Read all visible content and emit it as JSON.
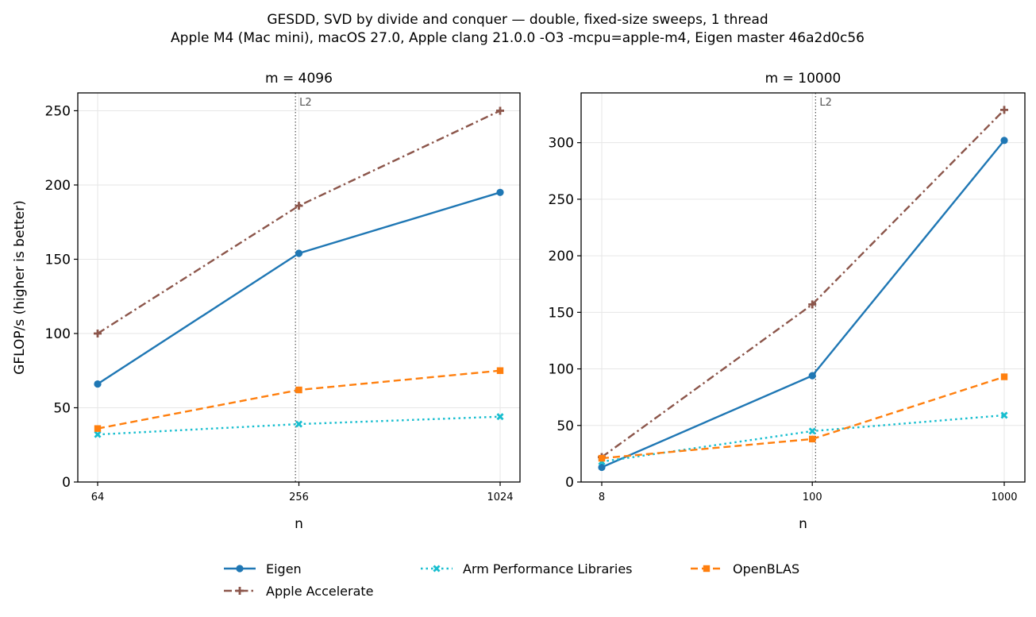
{
  "figure": {
    "title_line1": "GESDD, SVD by divide and conquer — double, fixed-size sweeps, 1 thread",
    "title_line2": "Apple M4 (Mac mini), macOS 27.0, Apple clang 21.0.0 -O3 -mcpu=apple-m4, Eigen master 46a2d0c56",
    "ylabel": "GFLOP/s (higher is better)",
    "legend": [
      "Eigen",
      "Apple Accelerate",
      "Arm Performance Libraries",
      "OpenBLAS"
    ]
  },
  "colors": {
    "Eigen": "#1f77b4",
    "Apple Accelerate": "#8c564b",
    "Arm Performance Libraries": "#17becf",
    "OpenBLAS": "#ff7f0e"
  },
  "chart_data": [
    {
      "type": "line",
      "title": "m = 4096",
      "xlabel": "n",
      "ylabel": "GFLOP/s (higher is better)",
      "xscale": "log",
      "x": [
        64,
        256,
        1024
      ],
      "x_tick_labels": [
        "64",
        "256",
        "1024"
      ],
      "ylim": [
        0,
        262
      ],
      "y_ticks": [
        0,
        50,
        100,
        150,
        200,
        250
      ],
      "grid": true,
      "vline": {
        "x": 250,
        "label": "L2"
      },
      "series": [
        {
          "name": "Eigen",
          "values": [
            66,
            154,
            195
          ],
          "marker": "circle",
          "dash": "solid"
        },
        {
          "name": "Apple Accelerate",
          "values": [
            100,
            186,
            250
          ],
          "marker": "plus",
          "dash": "dashdot"
        },
        {
          "name": "Arm Performance Libraries",
          "values": [
            32,
            39,
            44
          ],
          "marker": "x",
          "dash": "dotted"
        },
        {
          "name": "OpenBLAS",
          "values": [
            36,
            62,
            75
          ],
          "marker": "square",
          "dash": "dashed"
        }
      ]
    },
    {
      "type": "line",
      "title": "m = 10000",
      "xlabel": "n",
      "ylabel": "",
      "xscale": "log",
      "x": [
        8,
        100,
        1000
      ],
      "x_tick_labels": [
        "8",
        "100",
        "1000"
      ],
      "ylim": [
        0,
        344
      ],
      "y_ticks": [
        0,
        50,
        100,
        150,
        200,
        250,
        300
      ],
      "grid": true,
      "vline": {
        "x": 104,
        "label": "L2"
      },
      "series": [
        {
          "name": "Eigen",
          "values": [
            13,
            94,
            302
          ],
          "marker": "circle",
          "dash": "solid"
        },
        {
          "name": "Apple Accelerate",
          "values": [
            22,
            157,
            329
          ],
          "marker": "plus",
          "dash": "dashdot"
        },
        {
          "name": "Arm Performance Libraries",
          "values": [
            18,
            45,
            59
          ],
          "marker": "x",
          "dash": "dotted"
        },
        {
          "name": "OpenBLAS",
          "values": [
            21,
            38,
            93
          ],
          "marker": "square",
          "dash": "dashed"
        }
      ]
    }
  ]
}
